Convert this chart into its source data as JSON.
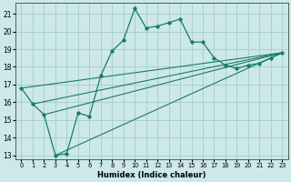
{
  "xlabel": "Humidex (Indice chaleur)",
  "bg_color": "#cce8e8",
  "grid_color": "#aacfcf",
  "line_color": "#1a7a6e",
  "xlim": [
    -0.5,
    23.5
  ],
  "ylim": [
    12.8,
    21.6
  ],
  "yticks": [
    13,
    14,
    15,
    16,
    17,
    18,
    19,
    20,
    21
  ],
  "xticks": [
    0,
    1,
    2,
    3,
    4,
    5,
    6,
    7,
    8,
    9,
    10,
    11,
    12,
    13,
    14,
    15,
    16,
    17,
    18,
    19,
    20,
    21,
    22,
    23
  ],
  "series": [
    [
      0,
      16.8
    ],
    [
      1,
      15.9
    ],
    [
      2,
      15.3
    ],
    [
      3,
      13.0
    ],
    [
      4,
      13.1
    ],
    [
      5,
      15.4
    ],
    [
      6,
      15.2
    ],
    [
      7,
      17.5
    ],
    [
      8,
      18.9
    ],
    [
      9,
      19.5
    ],
    [
      10,
      21.3
    ],
    [
      11,
      20.2
    ],
    [
      12,
      20.3
    ],
    [
      13,
      20.5
    ],
    [
      14,
      20.7
    ],
    [
      15,
      19.4
    ],
    [
      16,
      19.4
    ],
    [
      17,
      18.5
    ],
    [
      18,
      18.1
    ],
    [
      19,
      17.9
    ],
    [
      20,
      18.1
    ],
    [
      21,
      18.2
    ],
    [
      22,
      18.5
    ],
    [
      23,
      18.8
    ]
  ],
  "trend_lines": [
    [
      [
        0,
        16.8
      ],
      [
        23,
        18.8
      ]
    ],
    [
      [
        1,
        15.9
      ],
      [
        23,
        18.8
      ]
    ],
    [
      [
        2,
        15.3
      ],
      [
        23,
        18.8
      ]
    ],
    [
      [
        3,
        13.0
      ],
      [
        23,
        18.8
      ]
    ]
  ]
}
